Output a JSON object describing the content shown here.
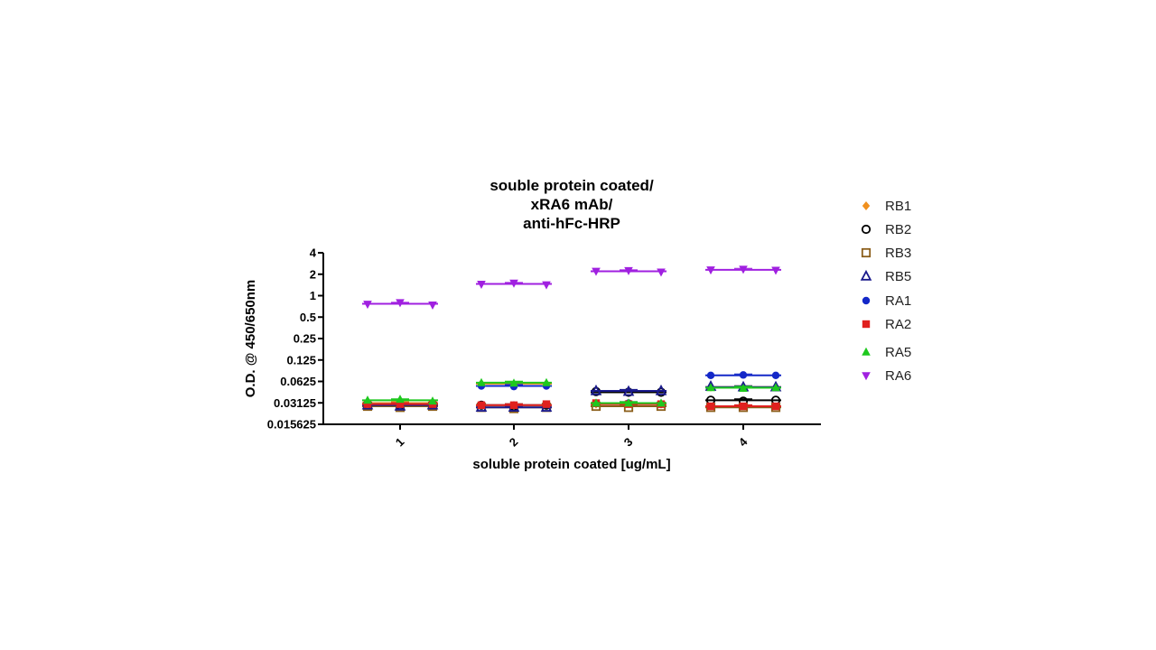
{
  "chart_data": {
    "type": "scatter",
    "title_lines": [
      "souble protein coated/",
      "xRA6 mAb/",
      "anti-hFc-HRP"
    ],
    "xlabel": "soluble protein coated [ug/mL]",
    "ylabel": "O.D. @ 450/650nm",
    "y_scale": "log2",
    "ylim": [
      0.015625,
      4
    ],
    "y_ticks": [
      0.015625,
      0.03125,
      0.0625,
      0.125,
      0.25,
      0.5,
      1,
      2,
      4
    ],
    "y_tick_labels": [
      "0.015625",
      "0.03125",
      "0.0625",
      "0.125",
      "0.25",
      "0.5",
      "1",
      "2",
      "4"
    ],
    "categories": [
      "1",
      "2",
      "3",
      "4"
    ],
    "legend_position": "right",
    "grid": false,
    "series": [
      {
        "name": "RB1",
        "marker": "diamond-filled",
        "color": "#f0901e",
        "points": [
          [
            0.032,
            0.031,
            0.03
          ],
          [
            0.058,
            0.057,
            0.058
          ],
          [
            0.03,
            0.031,
            0.03
          ],
          [
            0.052,
            0.051,
            0.052
          ]
        ],
        "mean": [
          0.031,
          0.058,
          0.03,
          0.052
        ]
      },
      {
        "name": "RB2",
        "marker": "circle-open",
        "color": "#000000",
        "points": [
          [
            0.029,
            0.029,
            0.03
          ],
          [
            0.029,
            0.028,
            0.029
          ],
          [
            0.045,
            0.044,
            0.044
          ],
          [
            0.034,
            0.033,
            0.034
          ]
        ],
        "mean": [
          0.029,
          0.029,
          0.044,
          0.034
        ]
      },
      {
        "name": "RB3",
        "marker": "square-open",
        "color": "#8b5e1a",
        "points": [
          [
            0.028,
            0.027,
            0.028
          ],
          [
            0.027,
            0.026,
            0.027
          ],
          [
            0.028,
            0.027,
            0.028
          ],
          [
            0.027,
            0.027,
            0.027
          ]
        ],
        "mean": [
          0.028,
          0.027,
          0.028,
          0.027
        ]
      },
      {
        "name": "RB5",
        "marker": "triangle-up-open",
        "color": "#1a1a8c",
        "points": [
          [
            0.029,
            0.028,
            0.029
          ],
          [
            0.027,
            0.027,
            0.027
          ],
          [
            0.046,
            0.045,
            0.046
          ],
          [
            0.053,
            0.052,
            0.052
          ]
        ],
        "mean": [
          0.029,
          0.027,
          0.046,
          0.052
        ]
      },
      {
        "name": "RA1",
        "marker": "circle-filled",
        "color": "#1428c8",
        "points": [
          [
            0.03,
            0.029,
            0.03
          ],
          [
            0.054,
            0.053,
            0.054
          ],
          [
            0.031,
            0.031,
            0.03
          ],
          [
            0.076,
            0.077,
            0.076
          ]
        ],
        "mean": [
          0.03,
          0.054,
          0.031,
          0.076
        ]
      },
      {
        "name": "RA2",
        "marker": "square-filled",
        "color": "#e0201e",
        "points": [
          [
            0.03,
            0.03,
            0.03
          ],
          [
            0.029,
            0.029,
            0.03
          ],
          [
            0.031,
            0.03,
            0.03
          ],
          [
            0.028,
            0.028,
            0.028
          ]
        ],
        "mean": [
          0.03,
          0.029,
          0.03,
          0.028
        ]
      },
      {
        "name": "RA5",
        "marker": "triangle-up-filled",
        "color": "#1ec81e",
        "points": [
          [
            0.034,
            0.035,
            0.033
          ],
          [
            0.06,
            0.059,
            0.06
          ],
          [
            0.031,
            0.031,
            0.031
          ],
          [
            0.051,
            0.05,
            0.051
          ]
        ],
        "mean": [
          0.034,
          0.06,
          0.031,
          0.051
        ]
      },
      {
        "name": "RA6",
        "marker": "triangle-down-filled",
        "color": "#a020e0",
        "points": [
          [
            0.76,
            0.8,
            0.74
          ],
          [
            1.45,
            1.5,
            1.42
          ],
          [
            2.2,
            2.25,
            2.15
          ],
          [
            2.3,
            2.35,
            2.28
          ]
        ],
        "mean": [
          0.77,
          1.46,
          2.2,
          2.31
        ]
      }
    ]
  }
}
